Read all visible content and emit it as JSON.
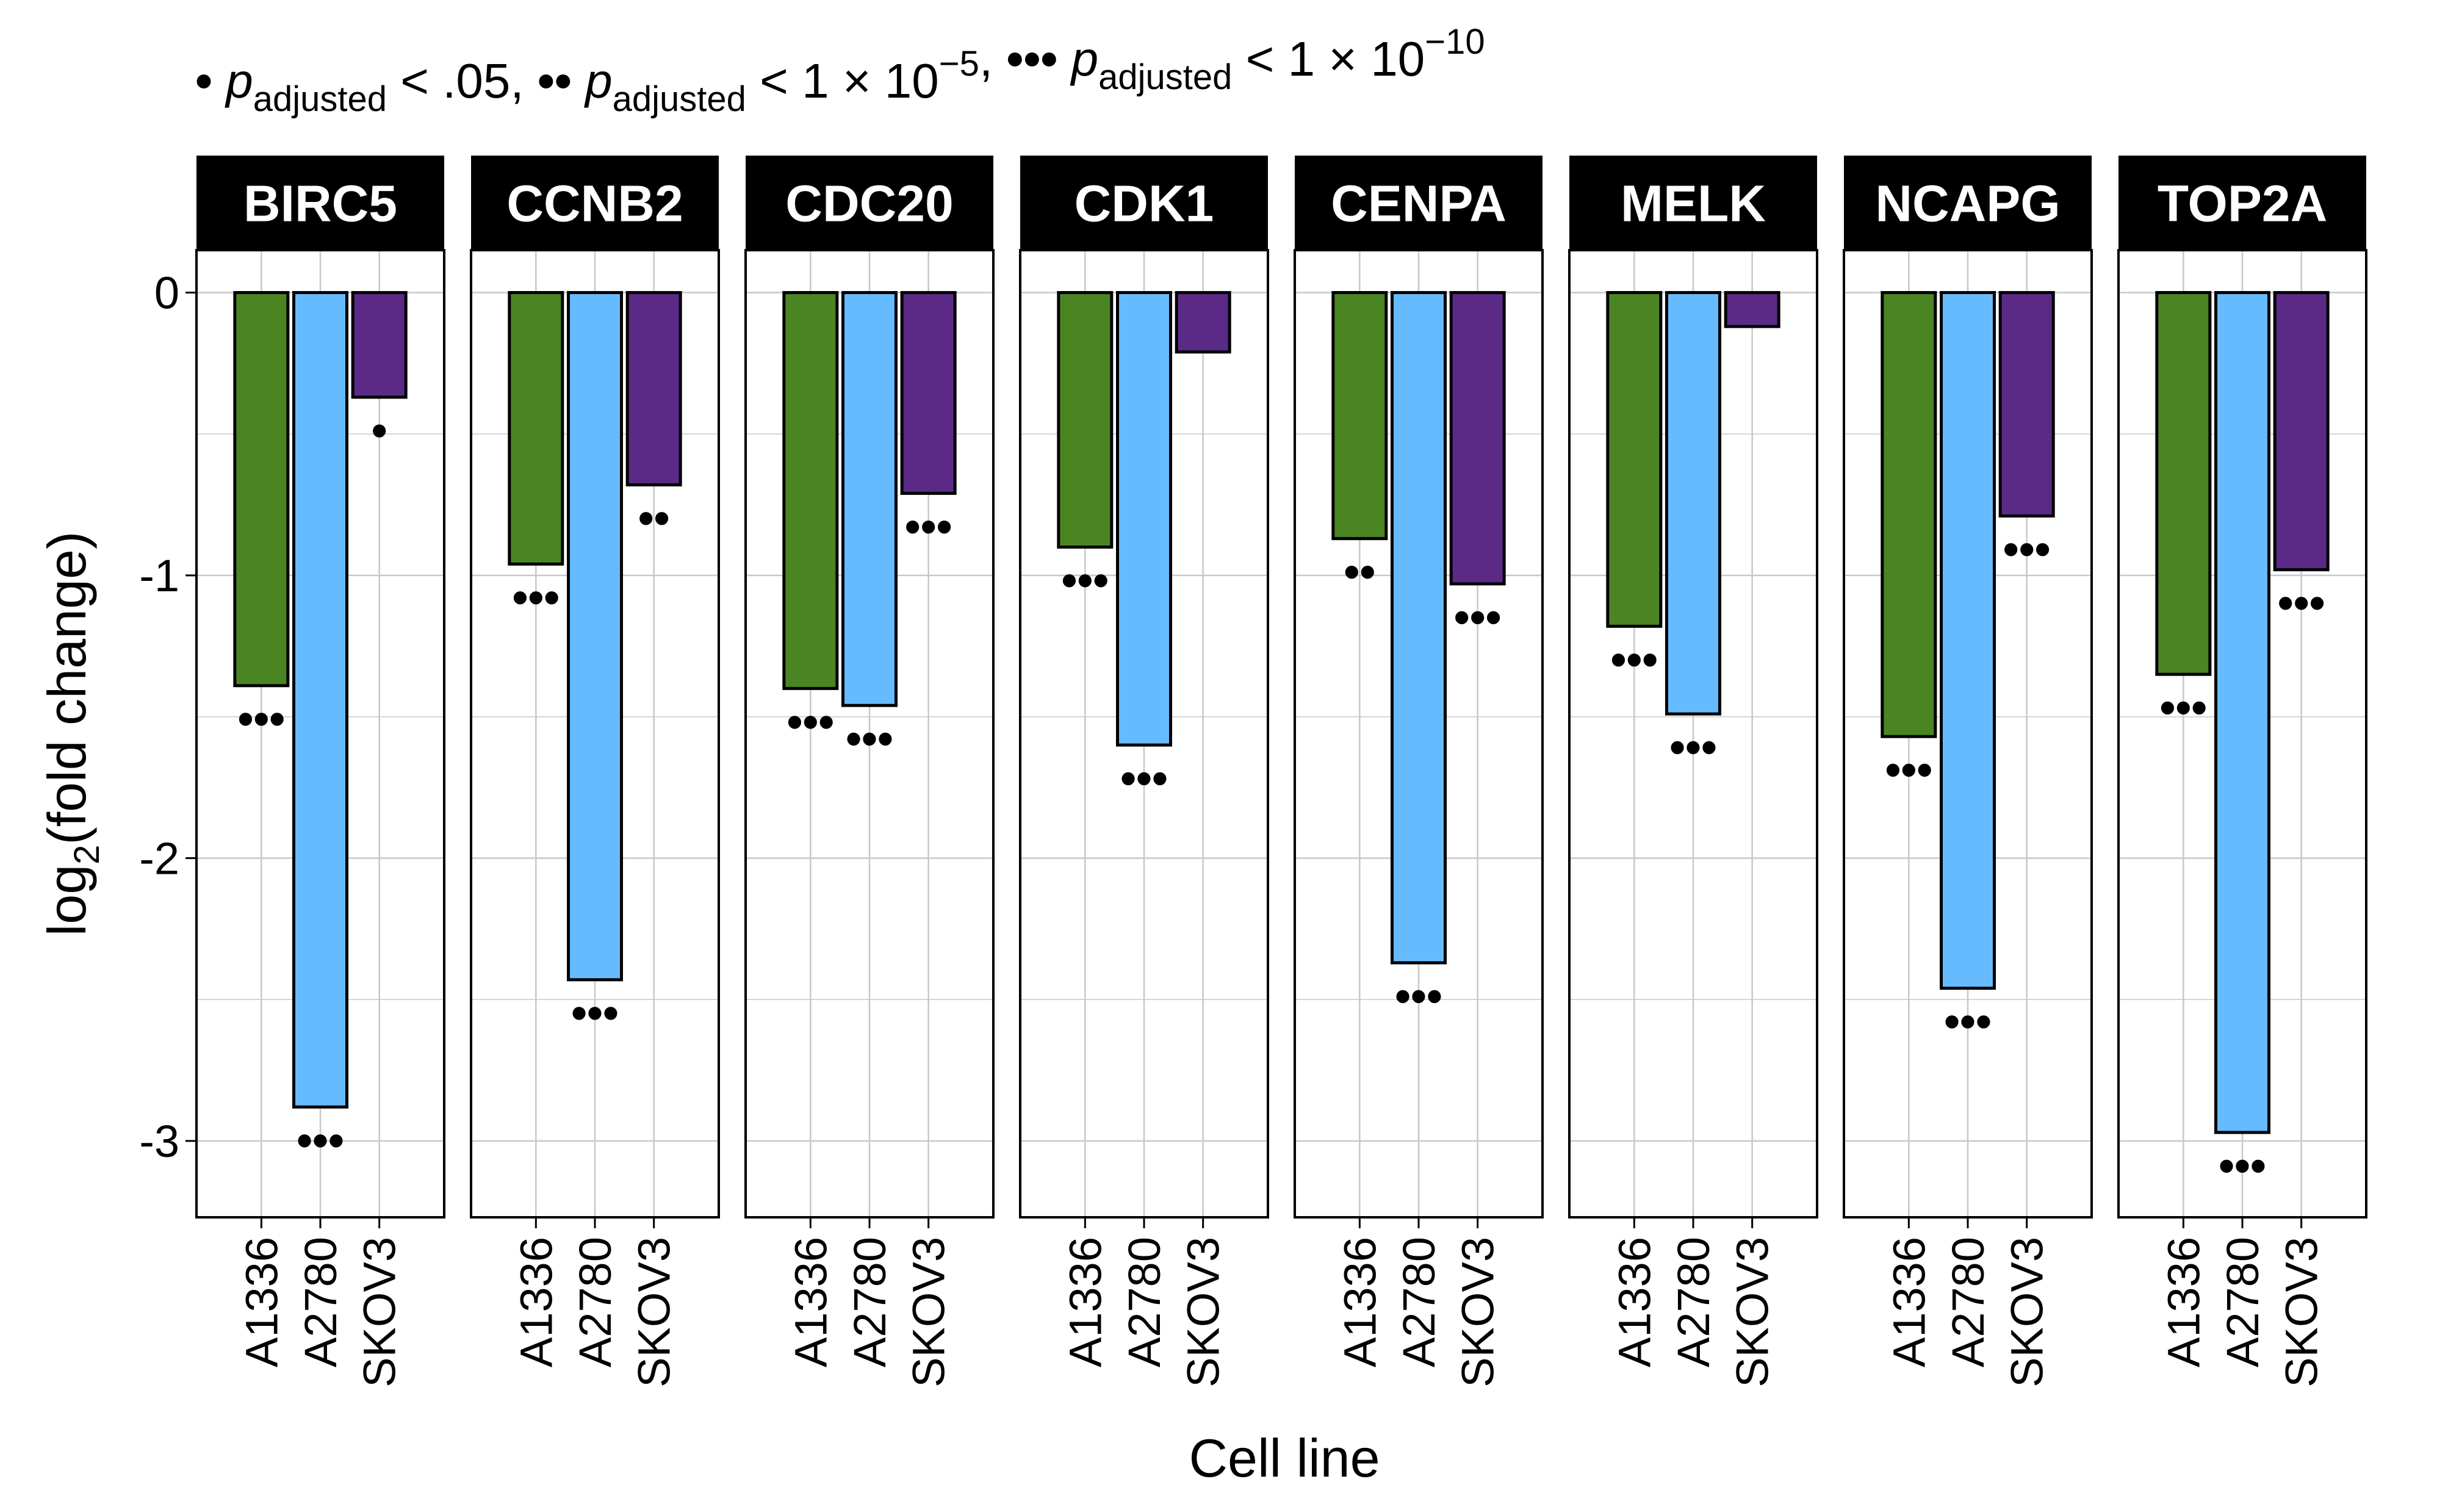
{
  "chart_data": {
    "type": "bar",
    "facet_by": "gene",
    "caption": {
      "items": [
        {
          "symbol": "•",
          "base": "p",
          "sub": "adjusted",
          "rel": "<",
          "value": ".05",
          "exp": ""
        },
        {
          "symbol": "••",
          "base": "p",
          "sub": "adjusted",
          "rel": "<",
          "value": "1 × 10",
          "exp": "−5"
        },
        {
          "symbol": "•••",
          "base": "p",
          "sub": "adjusted",
          "rel": "<",
          "value": "1 × 10",
          "exp": "−10"
        }
      ],
      "separator": ","
    },
    "xlabel": "Cell line",
    "ylabel": {
      "base": "log",
      "sub": "2",
      "rest": "(fold change)"
    },
    "ylim": [
      -3.27,
      0.15
    ],
    "yticks": [
      0,
      -1,
      -2,
      -3
    ],
    "ytick_labels": [
      "0",
      "-1",
      "-2",
      "-3"
    ],
    "categories": [
      "A1336",
      "A2780",
      "SKOV3"
    ],
    "colors": {
      "A1336": "#4a8522",
      "A2780": "#66bbff",
      "SKOV3": "#5b2a86"
    },
    "strip_color": "#000000",
    "grid": true,
    "facets": [
      {
        "gene": "BIRC5",
        "values": [
          -1.39,
          -2.88,
          -0.37
        ],
        "stars": [
          "•••",
          "•••",
          "•"
        ]
      },
      {
        "gene": "CCNB2",
        "values": [
          -0.96,
          -2.43,
          -0.68
        ],
        "stars": [
          "•••",
          "•••",
          "••"
        ]
      },
      {
        "gene": "CDC20",
        "values": [
          -1.4,
          -1.46,
          -0.71
        ],
        "stars": [
          "•••",
          "•••",
          "•••"
        ]
      },
      {
        "gene": "CDK1",
        "values": [
          -0.9,
          -1.6,
          -0.21
        ],
        "stars": [
          "•••",
          "•••",
          ""
        ]
      },
      {
        "gene": "CENPA",
        "values": [
          -0.87,
          -2.37,
          -1.03
        ],
        "stars": [
          "••",
          "•••",
          "•••"
        ]
      },
      {
        "gene": "MELK",
        "values": [
          -1.18,
          -1.49,
          -0.12
        ],
        "stars": [
          "•••",
          "•••",
          ""
        ]
      },
      {
        "gene": "NCAPG",
        "values": [
          -1.57,
          -2.46,
          -0.79
        ],
        "stars": [
          "•••",
          "•••",
          "•••"
        ]
      },
      {
        "gene": "TOP2A",
        "values": [
          -1.35,
          -2.97,
          -0.98
        ],
        "stars": [
          "•••",
          "•••",
          "•••"
        ]
      }
    ]
  }
}
